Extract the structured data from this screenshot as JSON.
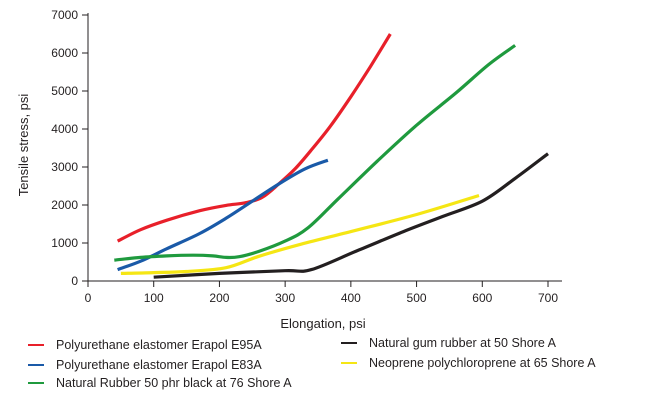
{
  "chart_data": {
    "type": "line",
    "xlabel": "Elongation, psi",
    "ylabel": "Tensile stress, psi",
    "xlim": [
      0,
      700
    ],
    "ylim": [
      0,
      7000
    ],
    "x_ticks": [
      0,
      100,
      200,
      300,
      400,
      500,
      600,
      700
    ],
    "x_tick_labels": [
      "0",
      "100",
      "200",
      "300",
      "400",
      "500",
      "600",
      "700"
    ],
    "y_ticks": [
      0,
      1000,
      2000,
      3000,
      4000,
      5000,
      6000,
      7000
    ],
    "y_tick_labels": [
      "0",
      "1000",
      "2000",
      "3000",
      "4000",
      "5000",
      "6000",
      "7000"
    ],
    "grid": false,
    "legend_position": "bottom",
    "series": [
      {
        "name": "Polyurethane elastomer Erapol E95A",
        "color": "#e8202a",
        "points": [
          [
            45,
            1050
          ],
          [
            80,
            1350
          ],
          [
            120,
            1600
          ],
          [
            170,
            1850
          ],
          [
            210,
            1990
          ],
          [
            240,
            2060
          ],
          [
            265,
            2200
          ],
          [
            290,
            2550
          ],
          [
            315,
            2950
          ],
          [
            340,
            3450
          ],
          [
            370,
            4100
          ],
          [
            400,
            4850
          ],
          [
            430,
            5650
          ],
          [
            460,
            6500
          ]
        ]
      },
      {
        "name": "Polyurethane elastomer Erapol E83A",
        "color": "#1a5aa8",
        "points": [
          [
            45,
            300
          ],
          [
            80,
            520
          ],
          [
            120,
            850
          ],
          [
            170,
            1250
          ],
          [
            210,
            1650
          ],
          [
            250,
            2100
          ],
          [
            290,
            2550
          ],
          [
            330,
            2950
          ],
          [
            365,
            3180
          ]
        ]
      },
      {
        "name": "Natural Rubber 50 phr black at 76 Shore A",
        "color": "#1f9a3e",
        "points": [
          [
            40,
            550
          ],
          [
            80,
            620
          ],
          [
            120,
            660
          ],
          [
            160,
            680
          ],
          [
            190,
            660
          ],
          [
            210,
            620
          ],
          [
            230,
            640
          ],
          [
            260,
            780
          ],
          [
            300,
            1050
          ],
          [
            335,
            1400
          ],
          [
            380,
            2150
          ],
          [
            440,
            3150
          ],
          [
            500,
            4100
          ],
          [
            560,
            4950
          ],
          [
            610,
            5700
          ],
          [
            650,
            6200
          ]
        ]
      },
      {
        "name": "Natural gum rubber at 50 Shore A",
        "color": "#231f20",
        "points": [
          [
            100,
            100
          ],
          [
            200,
            200
          ],
          [
            300,
            270
          ],
          [
            340,
            300
          ],
          [
            410,
            800
          ],
          [
            480,
            1300
          ],
          [
            540,
            1700
          ],
          [
            600,
            2100
          ],
          [
            650,
            2700
          ],
          [
            700,
            3350
          ]
        ]
      },
      {
        "name": "Neoprene polychloroprene at 65 Shore A",
        "color": "#f5e614",
        "points": [
          [
            50,
            200
          ],
          [
            100,
            220
          ],
          [
            150,
            250
          ],
          [
            210,
            350
          ],
          [
            260,
            650
          ],
          [
            320,
            950
          ],
          [
            400,
            1300
          ],
          [
            500,
            1750
          ],
          [
            595,
            2250
          ]
        ]
      }
    ]
  }
}
